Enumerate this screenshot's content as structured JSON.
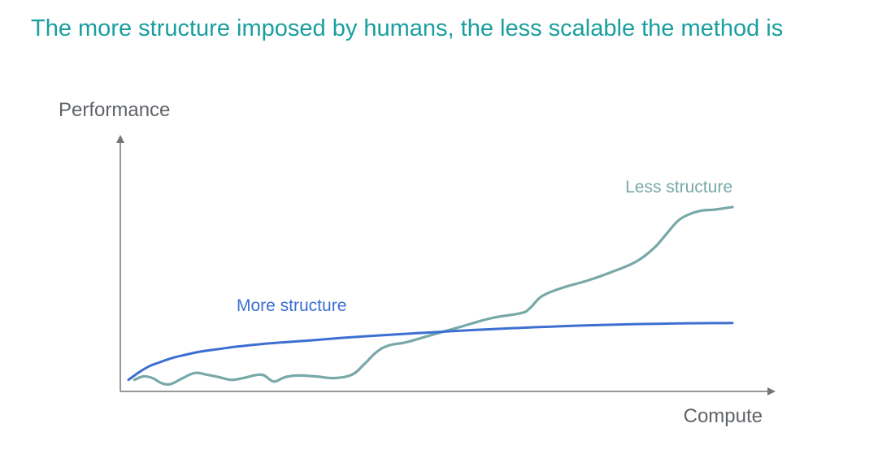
{
  "slide": {
    "title": "The more structure imposed by humans, the less scalable the method is"
  },
  "chart_data": {
    "type": "line",
    "title": "The more structure imposed by humans, the less scalable the method is",
    "xlabel": "Compute",
    "ylabel": "Performance",
    "grid": false,
    "legend": "inline labels",
    "xlim": [
      0,
      100
    ],
    "ylim": [
      0,
      100
    ],
    "series": [
      {
        "name": "More structure",
        "color": "#3c6fd1",
        "x": [
          0,
          0.8,
          2,
          3.5,
          5,
          7,
          9,
          12,
          15,
          18,
          22,
          26,
          30,
          35,
          40,
          45,
          50,
          55,
          60,
          65,
          70,
          75,
          80,
          85,
          90,
          95,
          100
        ],
        "y": [
          3,
          5,
          8,
          11,
          13,
          15.5,
          17.3,
          19.5,
          21,
          22.4,
          23.9,
          25,
          26,
          27.4,
          28.6,
          29.7,
          30.7,
          31.7,
          32.6,
          33.4,
          34.1,
          34.7,
          35.2,
          35.6,
          35.9,
          36.1,
          36.2
        ]
      },
      {
        "name": "Less structure",
        "color": "#78a8a8",
        "x": [
          1,
          2.5,
          4,
          5.5,
          7,
          9,
          11,
          13,
          15,
          17,
          19,
          22,
          24,
          25.5,
          26.5,
          28,
          31,
          34,
          37,
          39,
          41,
          43,
          46,
          50,
          55,
          60,
          65,
          66.5,
          68.5,
          72,
          76,
          80,
          84,
          87,
          89,
          91,
          93,
          95,
          97,
          100
        ],
        "y": [
          3,
          5,
          4,
          1,
          0.5,
          4,
          7,
          6,
          4.5,
          3,
          4,
          6,
          2,
          4,
          5,
          5.5,
          5,
          4,
          6,
          12,
          19,
          23,
          25,
          29,
          34,
          39,
          42,
          45,
          52,
          57,
          61,
          66,
          72,
          80,
          88,
          96,
          100,
          102,
          102.5,
          104
        ]
      }
    ]
  },
  "chart_text": {
    "ylabel": "Performance",
    "xlabel": "Compute",
    "label_more": "More structure",
    "label_less": "Less structure"
  }
}
